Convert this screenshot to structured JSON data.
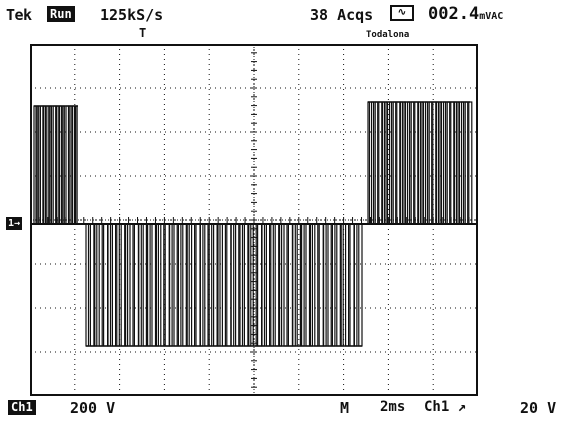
{
  "header": {
    "brand": "Tek",
    "mode": "Run",
    "sample_rate": "125kS/s",
    "acquisitions": "38 Acqs",
    "ac_icon_name": "ac-coupling-icon",
    "readout_value": "002.4",
    "readout_unit": "mVAC"
  },
  "markers": {
    "trigger_position": "T",
    "trigger_line_label": "Todalona",
    "channel_ground": "1→"
  },
  "footer": {
    "channel_badge": "Ch1",
    "volts_per_div": "200 V",
    "horizontal_label": "M",
    "time_per_div": "2ms",
    "trigger_source": "Ch1 ↗",
    "trigger_level": "20 V"
  },
  "display": {
    "trace_color": "#111111",
    "grid_color": "#111111",
    "background": "#ffffff"
  }
}
